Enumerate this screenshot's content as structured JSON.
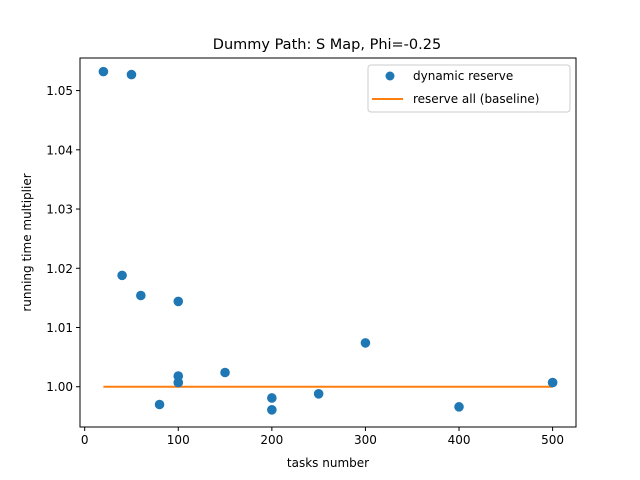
{
  "chart_data": {
    "type": "scatter",
    "title": "Dummy Path: S Map, Phi=-0.25",
    "xlabel": "tasks number",
    "ylabel": "running time multiplier",
    "xlim": [
      -5,
      525
    ],
    "ylim": [
      0.9932,
      1.0555
    ],
    "xticks": [
      0,
      100,
      200,
      300,
      400,
      500
    ],
    "xtick_labels": [
      "0",
      "100",
      "200",
      "300",
      "400",
      "500"
    ],
    "yticks": [
      1.0,
      1.01,
      1.02,
      1.03,
      1.04,
      1.05
    ],
    "ytick_labels": [
      "1.00",
      "1.01",
      "1.02",
      "1.03",
      "1.04",
      "1.05"
    ],
    "grid": false,
    "legend_position": "top-right",
    "series": [
      {
        "name": "dynamic reserve",
        "kind": "scatter",
        "color": "#1f77b4",
        "points": [
          {
            "x": 20,
            "y": 1.0532
          },
          {
            "x": 50,
            "y": 1.0527
          },
          {
            "x": 40,
            "y": 1.0188
          },
          {
            "x": 60,
            "y": 1.0154
          },
          {
            "x": 100,
            "y": 1.0144
          },
          {
            "x": 100,
            "y": 1.0018
          },
          {
            "x": 100,
            "y": 1.0007
          },
          {
            "x": 80,
            "y": 0.997
          },
          {
            "x": 150,
            "y": 1.0024
          },
          {
            "x": 200,
            "y": 0.9981
          },
          {
            "x": 200,
            "y": 0.9961
          },
          {
            "x": 250,
            "y": 0.9988
          },
          {
            "x": 300,
            "y": 1.0074
          },
          {
            "x": 400,
            "y": 0.9966
          },
          {
            "x": 500,
            "y": 1.0007
          }
        ]
      },
      {
        "name": "reserve all (baseline)",
        "kind": "line",
        "color": "#ff7f0e",
        "points": [
          {
            "x": 20,
            "y": 1.0
          },
          {
            "x": 500,
            "y": 1.0
          }
        ]
      }
    ]
  }
}
